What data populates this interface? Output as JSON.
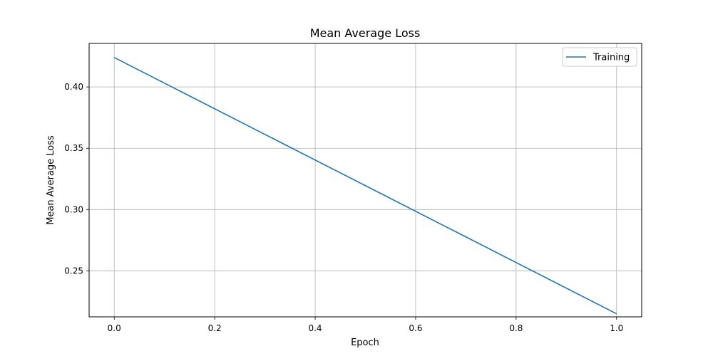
{
  "chart_data": {
    "type": "line",
    "title": "Mean Average Loss",
    "xlabel": "Epoch",
    "ylabel": "Mean Average Loss",
    "xlim": [
      -0.05,
      1.05
    ],
    "ylim": [
      0.2125,
      0.4355
    ],
    "xticks": [
      0.0,
      0.2,
      0.4,
      0.6,
      0.8,
      1.0
    ],
    "xtick_labels": [
      "0.0",
      "0.2",
      "0.4",
      "0.6",
      "0.8",
      "1.0"
    ],
    "yticks": [
      0.25,
      0.3,
      0.35,
      0.4
    ],
    "ytick_labels": [
      "0.25",
      "0.30",
      "0.35",
      "0.40"
    ],
    "grid": true,
    "legend_position": "top-right",
    "series": [
      {
        "name": "Training",
        "color": "#1f77b4",
        "x": [
          0.0,
          1.0
        ],
        "y": [
          0.424,
          0.215
        ]
      }
    ]
  }
}
